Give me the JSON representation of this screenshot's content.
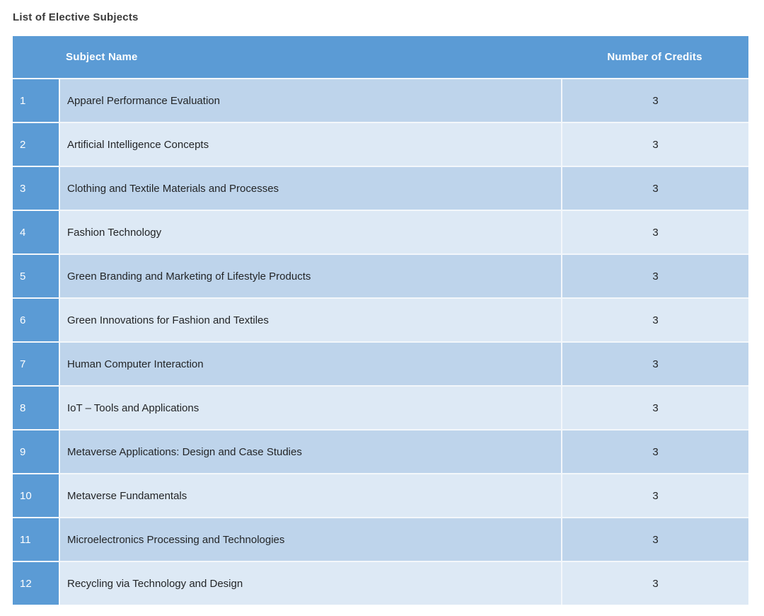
{
  "page": {
    "title": "List of Elective Subjects"
  },
  "colors": {
    "header_blue": "#5b9bd5",
    "band_dark": "#bed4eb",
    "band_light": "#dde9f5",
    "separator": "#f3f7fb",
    "header_text": "#ffffff",
    "body_text": "#232527",
    "title_text": "#3a3a3a"
  },
  "table": {
    "columns": {
      "index": "",
      "subject": "Subject Name",
      "credits": "Number of Credits"
    },
    "rows": [
      {
        "index": "1",
        "subject": "Apparel Performance Evaluation",
        "credits": "3"
      },
      {
        "index": "2",
        "subject": "Artificial Intelligence Concepts",
        "credits": "3"
      },
      {
        "index": "3",
        "subject": "Clothing and Textile Materials and Processes",
        "credits": "3"
      },
      {
        "index": "4",
        "subject": "Fashion Technology",
        "credits": "3"
      },
      {
        "index": "5",
        "subject": "Green Branding and Marketing of Lifestyle Products",
        "credits": "3"
      },
      {
        "index": "6",
        "subject": "Green Innovations for Fashion and Textiles",
        "credits": "3"
      },
      {
        "index": "7",
        "subject": "Human Computer Interaction",
        "credits": "3"
      },
      {
        "index": "8",
        "subject": "IoT – Tools and Applications",
        "credits": "3"
      },
      {
        "index": "9",
        "subject": "Metaverse Applications: Design and Case Studies",
        "credits": "3"
      },
      {
        "index": "10",
        "subject": "Metaverse Fundamentals",
        "credits": "3"
      },
      {
        "index": "11",
        "subject": "Microelectronics Processing and Technologies",
        "credits": "3"
      },
      {
        "index": "12",
        "subject": "Recycling via Technology and Design",
        "credits": "3"
      }
    ]
  }
}
